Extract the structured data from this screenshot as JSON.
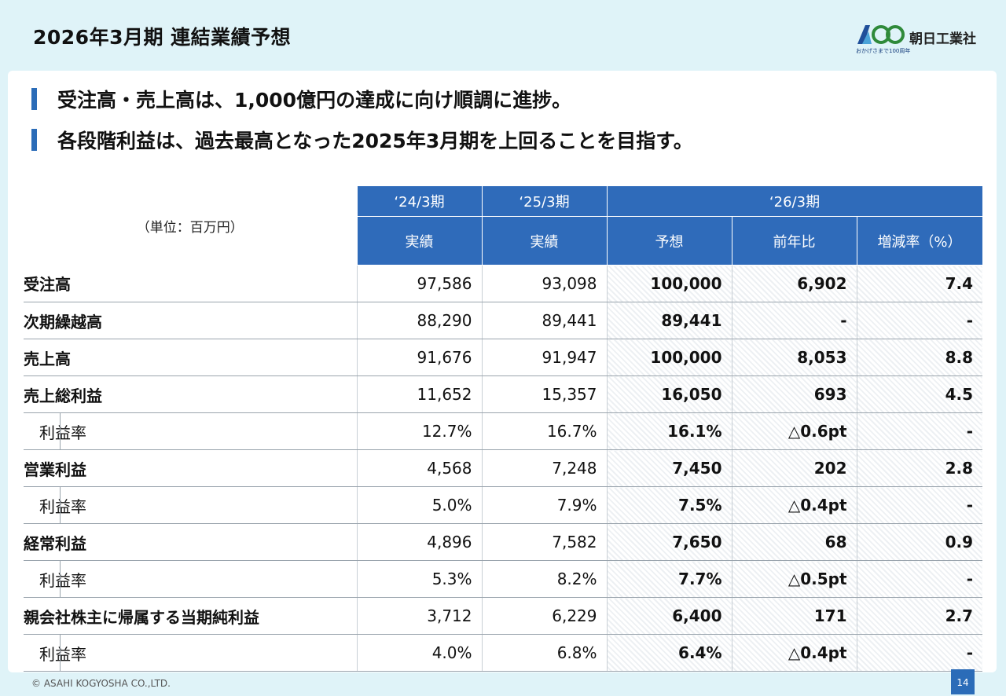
{
  "header": {
    "title": "2026年3月期 連結業績予想",
    "company_name": "朝日工業社",
    "logo_tagline": "おかげさまで100周年",
    "logo_mark": "100 anniversary"
  },
  "bullets": [
    "受注高・売上高は、1,000億円の達成に向け順調に進捗。",
    "各段階利益は、過去最高となった2025年3月期を上回ることを目指す。"
  ],
  "table": {
    "unit": "（単位：百万円）",
    "periods": [
      "‘24/3期",
      "‘25/3期",
      "‘26/3期"
    ],
    "subheaders": [
      "実績",
      "実績",
      "予想",
      "前年比",
      "増減率（%）"
    ],
    "rows": [
      {
        "label": "受注高",
        "sub": false,
        "v1": "97,586",
        "v2": "93,098",
        "forecast": "100,000",
        "yoy": "6,902",
        "rate": "7.4"
      },
      {
        "label": "次期繰越高",
        "sub": false,
        "v1": "88,290",
        "v2": "89,441",
        "forecast": "89,441",
        "yoy": "-",
        "rate": "-"
      },
      {
        "label": "売上高",
        "sub": false,
        "v1": "91,676",
        "v2": "91,947",
        "forecast": "100,000",
        "yoy": "8,053",
        "rate": "8.8"
      },
      {
        "label": "売上総利益",
        "sub": false,
        "v1": "11,652",
        "v2": "15,357",
        "forecast": "16,050",
        "yoy": "693",
        "rate": "4.5"
      },
      {
        "label": "利益率",
        "sub": true,
        "v1": "12.7%",
        "v2": "16.7%",
        "forecast": "16.1%",
        "yoy": "△0.6pt",
        "rate": "-"
      },
      {
        "label": "営業利益",
        "sub": false,
        "v1": "4,568",
        "v2": "7,248",
        "forecast": "7,450",
        "yoy": "202",
        "rate": "2.8"
      },
      {
        "label": "利益率",
        "sub": true,
        "v1": "5.0%",
        "v2": "7.9%",
        "forecast": "7.5%",
        "yoy": "△0.4pt",
        "rate": "-"
      },
      {
        "label": "経常利益",
        "sub": false,
        "v1": "4,896",
        "v2": "7,582",
        "forecast": "7,650",
        "yoy": "68",
        "rate": "0.9"
      },
      {
        "label": "利益率",
        "sub": true,
        "v1": "5.3%",
        "v2": "8.2%",
        "forecast": "7.7%",
        "yoy": "△0.5pt",
        "rate": "-"
      },
      {
        "label": "親会社株主に帰属する当期純利益",
        "sub": false,
        "v1": "3,712",
        "v2": "6,229",
        "forecast": "6,400",
        "yoy": "171",
        "rate": "2.7"
      },
      {
        "label": "利益率",
        "sub": true,
        "v1": "4.0%",
        "v2": "6.8%",
        "forecast": "6.4%",
        "yoy": "△0.4pt",
        "rate": "-"
      }
    ]
  },
  "footer": {
    "copyright": "© ASAHI KOGYOSHA CO.,LTD.",
    "page_number": "14"
  },
  "colors": {
    "background": "#dff3f8",
    "accent": "#2b6cb8",
    "header_fill": "#2f6bba"
  }
}
